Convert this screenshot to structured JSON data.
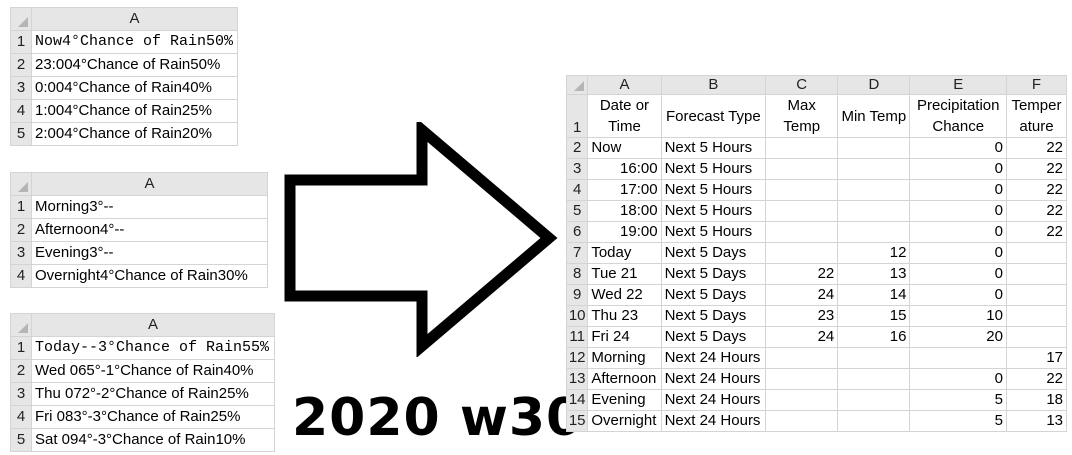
{
  "sheet1": {
    "col": "A",
    "rows": [
      {
        "n": "1",
        "v": "Now4°Chance of Rain50%"
      },
      {
        "n": "2",
        "v": "23:004°Chance of Rain50%"
      },
      {
        "n": "3",
        "v": "0:004°Chance of Rain40%"
      },
      {
        "n": "4",
        "v": "1:004°Chance of Rain25%"
      },
      {
        "n": "5",
        "v": "2:004°Chance of Rain20%"
      }
    ]
  },
  "sheet2": {
    "col": "A",
    "rows": [
      {
        "n": "1",
        "v": "Morning3°--"
      },
      {
        "n": "2",
        "v": "Afternoon4°--"
      },
      {
        "n": "3",
        "v": "Evening3°--"
      },
      {
        "n": "4",
        "v": "Overnight4°Chance of Rain30%"
      }
    ]
  },
  "sheet3": {
    "col": "A",
    "rows": [
      {
        "n": "1",
        "v": "Today--3°Chance of Rain55%"
      },
      {
        "n": "2",
        "v": "Wed 065°-1°Chance of Rain40%"
      },
      {
        "n": "3",
        "v": "Thu 072°-2°Chance of Rain25%"
      },
      {
        "n": "4",
        "v": "Fri 083°-3°Chance of Rain25%"
      },
      {
        "n": "5",
        "v": "Sat 094°-3°Chance of Rain10%"
      }
    ]
  },
  "sheet4": {
    "cols": [
      "A",
      "B",
      "C",
      "D",
      "E",
      "F"
    ],
    "headers": [
      "Date or Time",
      "Forecast Type",
      "Max Temp",
      "Min Temp",
      "Precipitation Chance",
      "Temper ature"
    ],
    "rows": [
      {
        "n": "2",
        "a": "Now",
        "b": "Next 5 Hours",
        "c": "",
        "d": "",
        "e": "0",
        "f": "22"
      },
      {
        "n": "3",
        "a": "16:00",
        "b": "Next 5 Hours",
        "c": "",
        "d": "",
        "e": "0",
        "f": "22"
      },
      {
        "n": "4",
        "a": "17:00",
        "b": "Next 5 Hours",
        "c": "",
        "d": "",
        "e": "0",
        "f": "22"
      },
      {
        "n": "5",
        "a": "18:00",
        "b": "Next 5 Hours",
        "c": "",
        "d": "",
        "e": "0",
        "f": "22"
      },
      {
        "n": "6",
        "a": "19:00",
        "b": "Next 5 Hours",
        "c": "",
        "d": "",
        "e": "0",
        "f": "22"
      },
      {
        "n": "7",
        "a": "Today",
        "b": "Next 5 Days",
        "c": "",
        "d": "12",
        "e": "0",
        "f": ""
      },
      {
        "n": "8",
        "a": "Tue 21",
        "b": "Next 5 Days",
        "c": "22",
        "d": "13",
        "e": "0",
        "f": ""
      },
      {
        "n": "9",
        "a": "Wed 22",
        "b": "Next 5 Days",
        "c": "24",
        "d": "14",
        "e": "0",
        "f": ""
      },
      {
        "n": "10",
        "a": "Thu 23",
        "b": "Next 5 Days",
        "c": "23",
        "d": "15",
        "e": "10",
        "f": ""
      },
      {
        "n": "11",
        "a": "Fri 24",
        "b": "Next 5 Days",
        "c": "24",
        "d": "16",
        "e": "20",
        "f": ""
      },
      {
        "n": "12",
        "a": "Morning",
        "b": "Next 24 Hours",
        "c": "",
        "d": "",
        "e": "",
        "f": "17"
      },
      {
        "n": "13",
        "a": "Afternoon",
        "b": "Next 24 Hours",
        "c": "",
        "d": "",
        "e": "0",
        "f": "22"
      },
      {
        "n": "14",
        "a": "Evening",
        "b": "Next 24 Hours",
        "c": "",
        "d": "",
        "e": "5",
        "f": "18"
      },
      {
        "n": "15",
        "a": "Overnight",
        "b": "Next 24 Hours",
        "c": "",
        "d": "",
        "e": "5",
        "f": "13"
      }
    ]
  },
  "caption": "2020 w30",
  "arrow_icon": "right-arrow-icon"
}
